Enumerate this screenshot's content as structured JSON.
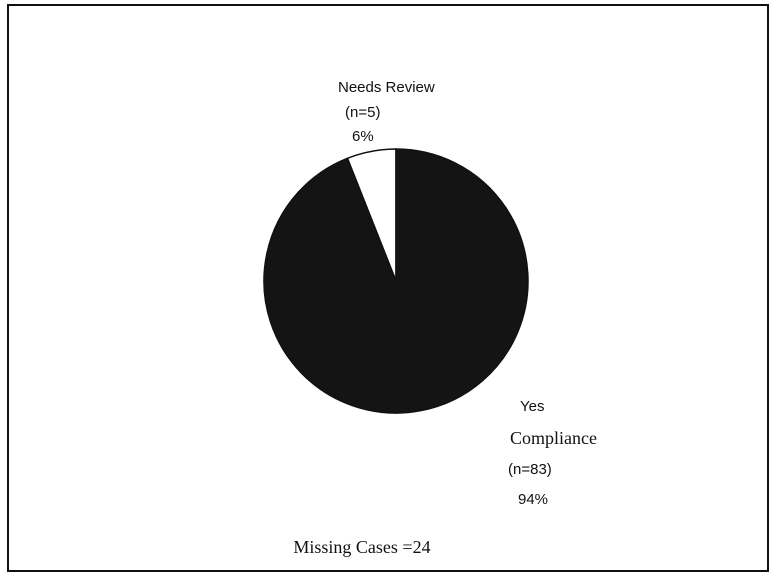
{
  "chart_data": {
    "type": "pie",
    "categories": [
      [
        "Needs Review"
      ],
      [
        "Yes",
        "Compliance"
      ]
    ],
    "values": [
      6,
      94
    ],
    "value_labels": [
      "6%",
      "94%"
    ],
    "counts": [
      5,
      83
    ],
    "count_labels": [
      "(n=5)",
      "(n=83)"
    ],
    "colors": [
      "#ffffff",
      "#141414"
    ],
    "note": "Missing Cases =24"
  }
}
